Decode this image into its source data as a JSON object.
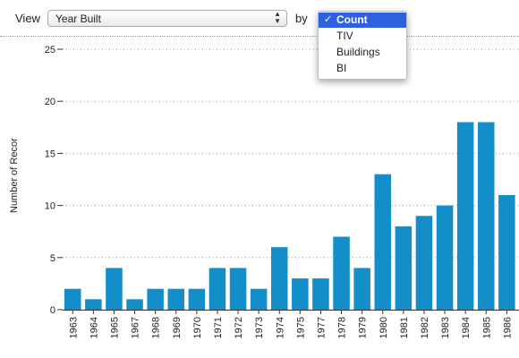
{
  "toolbar": {
    "view_label": "View",
    "view_select": "Year Built",
    "by_label": "by",
    "measure_options": [
      {
        "label": "Count",
        "selected": true
      },
      {
        "label": "TIV",
        "selected": false
      },
      {
        "label": "Buildings",
        "selected": false
      },
      {
        "label": "BI",
        "selected": false
      }
    ],
    "check_glyph": "✓"
  },
  "colors": {
    "bar": "#138ec8",
    "menu_highlight": "#2f60e0"
  },
  "chart_data": {
    "type": "bar",
    "ylabel": "Number of Recor",
    "xlabel": "",
    "ylim": [
      0,
      25
    ],
    "yticks": [
      0,
      5,
      10,
      15,
      20,
      25
    ],
    "grid": "horizontal-dotted",
    "categories": [
      "1963",
      "1964",
      "1965",
      "1967",
      "1968",
      "1969",
      "1970",
      "1971",
      "1972",
      "1973",
      "1974",
      "1975",
      "1977",
      "1978",
      "1979",
      "1980",
      "1981",
      "1982",
      "1983",
      "1984",
      "1985",
      "1986"
    ],
    "values": [
      2,
      1,
      4,
      1,
      2,
      2,
      2,
      4,
      4,
      2,
      6,
      3,
      3,
      7,
      4,
      13,
      8,
      9,
      10,
      18,
      18,
      11
    ]
  }
}
